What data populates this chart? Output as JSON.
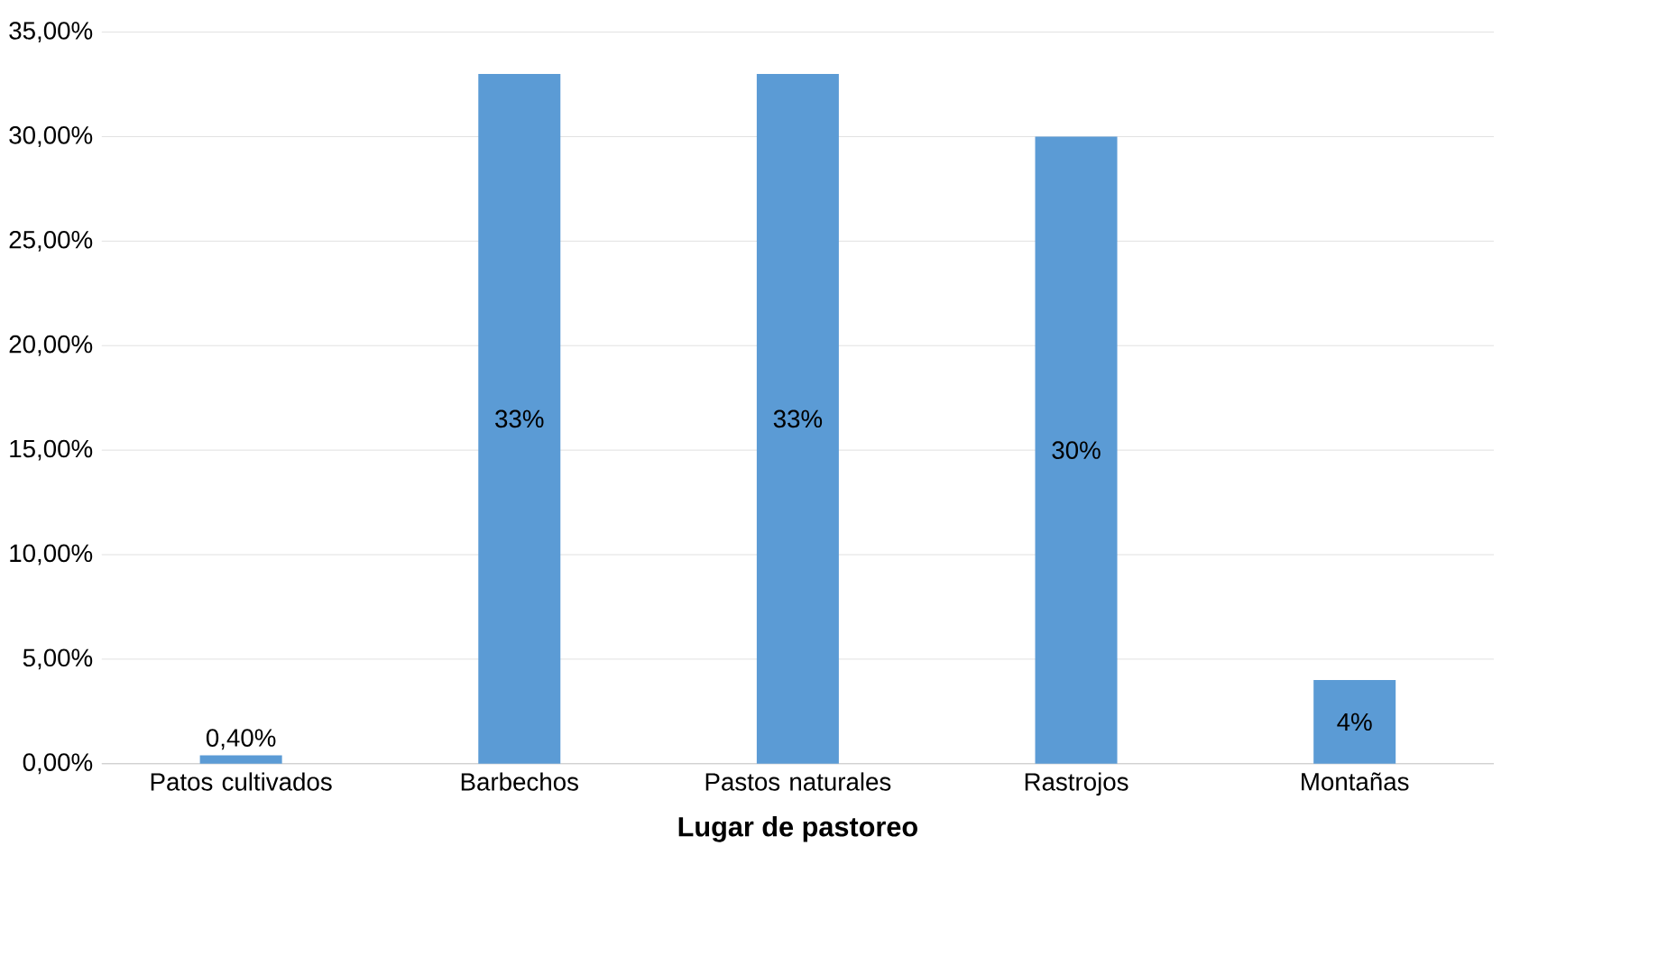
{
  "chart_data": {
    "type": "bar",
    "xlabel": "Lugar de pastoreo",
    "categories": [
      "Patos cultivados",
      "Barbechos",
      "Pastos naturales",
      "Rastrojos",
      "Montañas"
    ],
    "values": [
      0.4,
      33,
      33,
      30,
      4
    ],
    "value_labels": [
      "0,40%",
      "33%",
      "33%",
      "30%",
      "4%"
    ],
    "color": "#5b9bd5",
    "ylim": [
      0,
      35
    ],
    "yticks": [
      {
        "value": 0,
        "label": "0,00%"
      },
      {
        "value": 5,
        "label": "5,00%"
      },
      {
        "value": 10,
        "label": "10,00%"
      },
      {
        "value": 15,
        "label": "15,00%"
      },
      {
        "value": 20,
        "label": "20,00%"
      },
      {
        "value": 25,
        "label": "25,00%"
      },
      {
        "value": 30,
        "label": "30,00%"
      },
      {
        "value": 35,
        "label": "35,00%"
      }
    ],
    "grid": "y"
  }
}
